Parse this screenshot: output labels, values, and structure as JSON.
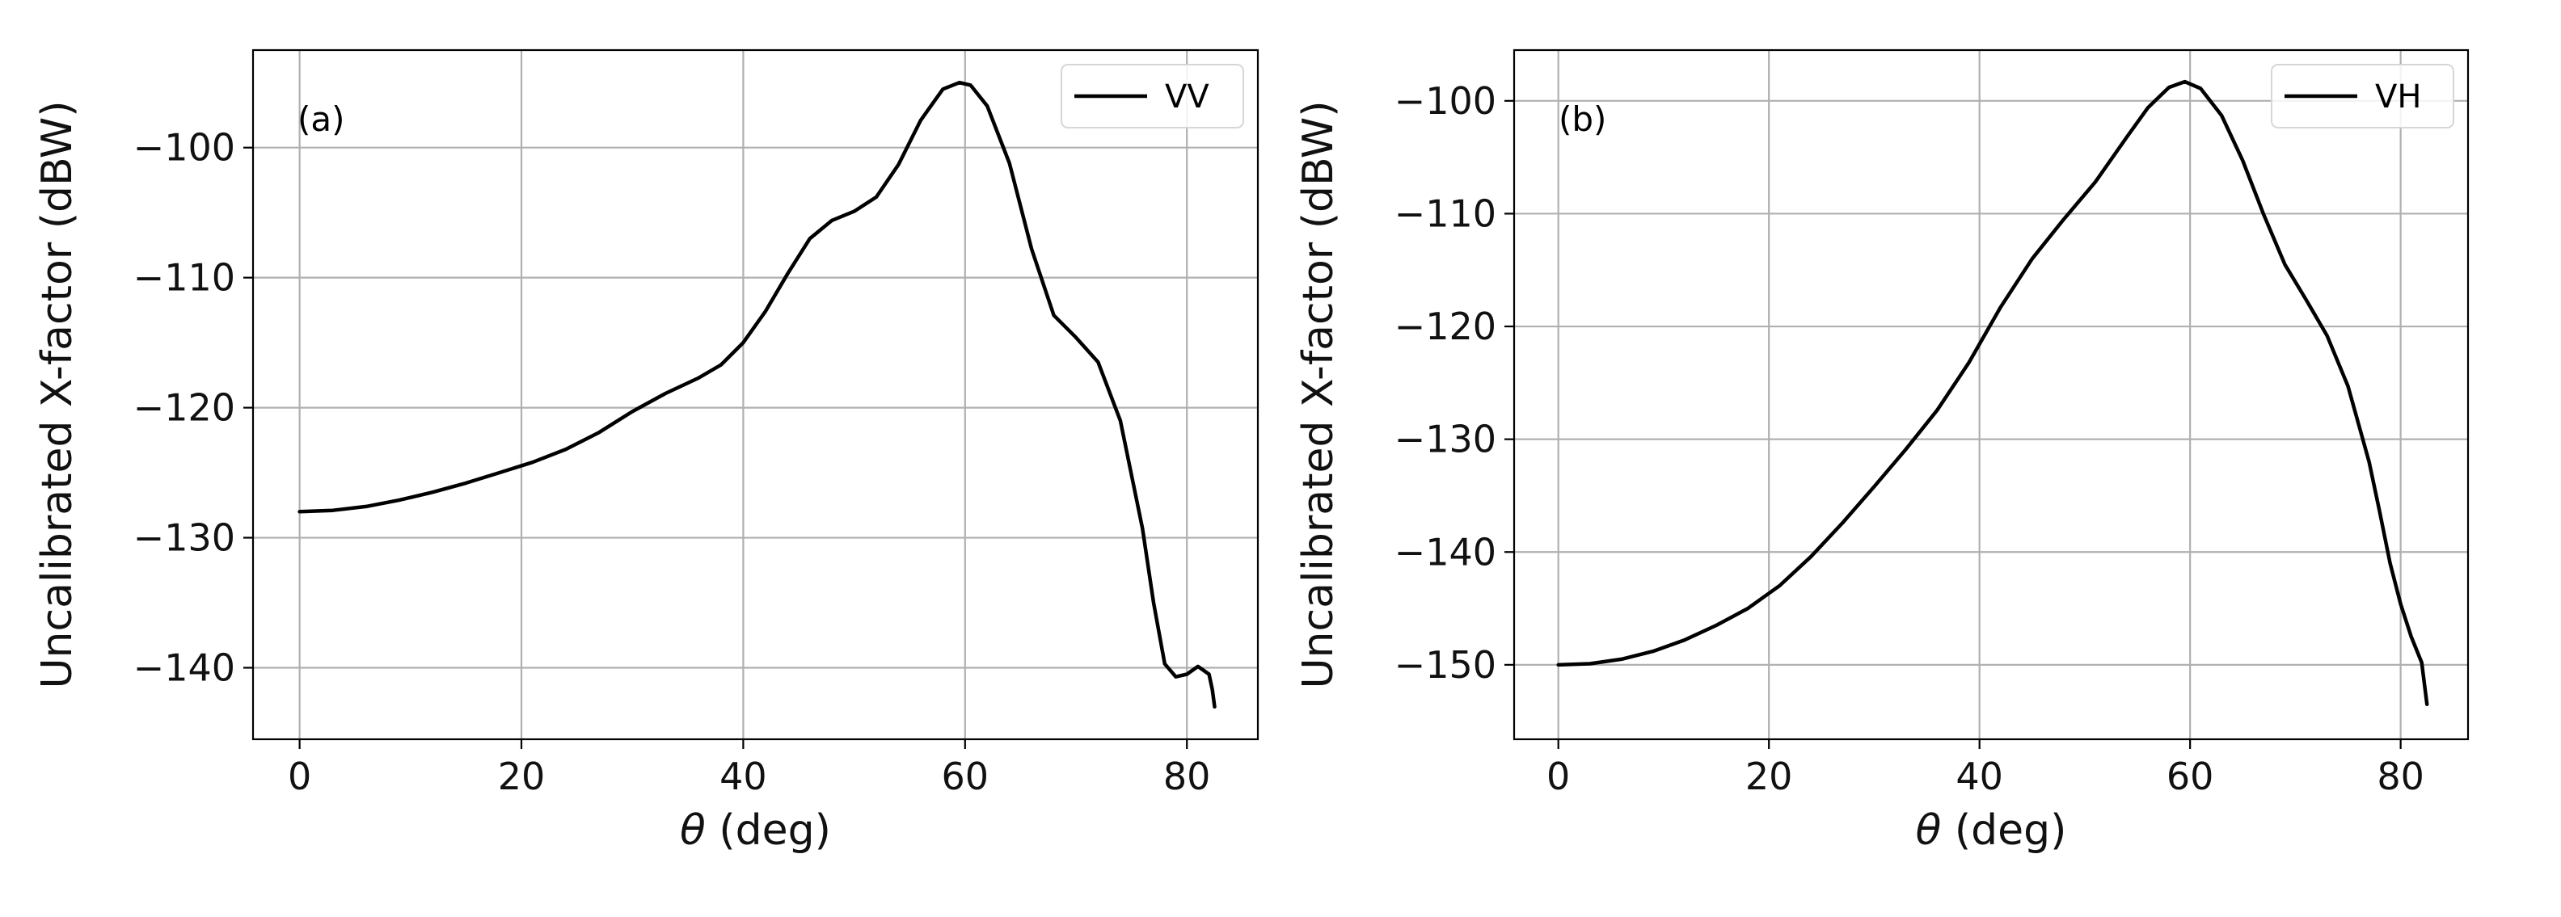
{
  "chart_data": [
    {
      "type": "line",
      "panel_label": "(a)",
      "xlabel_symbol": "θ",
      "xlabel_rest": " (deg)",
      "ylabel": "Uncalibrated X-factor (dBW)",
      "xlim": [
        -4.2,
        86.4
      ],
      "ylim": [
        -145.5,
        -92.5
      ],
      "xticks": [
        0,
        20,
        40,
        60,
        80
      ],
      "yticks": [
        -140,
        -130,
        -120,
        -110,
        -100
      ],
      "xtick_labels": [
        "0",
        "20",
        "40",
        "60",
        "80"
      ],
      "ytick_labels": [
        "−140",
        "−130",
        "−120",
        "−110",
        "−100"
      ],
      "grid": true,
      "legend_position": "top-right",
      "series": [
        {
          "name": "VV",
          "color": "#000000",
          "x": [
            0,
            3,
            6,
            9,
            12,
            15,
            18,
            21,
            24,
            27,
            30,
            33,
            36,
            38,
            40,
            42,
            44,
            46,
            48,
            50,
            52,
            54,
            56,
            58,
            59.5,
            60.5,
            62,
            64,
            66,
            68,
            70,
            72,
            74,
            76,
            77,
            78,
            79,
            80,
            81,
            82,
            82.3,
            82.5
          ],
          "y": [
            -128,
            -127.9,
            -127.6,
            -127.1,
            -126.5,
            -125.8,
            -125,
            -124.2,
            -123.2,
            -121.9,
            -120.3,
            -118.9,
            -117.7,
            -116.7,
            -115,
            -112.6,
            -109.7,
            -107,
            -105.6,
            -104.9,
            -103.8,
            -101.3,
            -97.9,
            -95.5,
            -95,
            -95.2,
            -96.8,
            -101.2,
            -107.8,
            -112.9,
            -114.6,
            -116.5,
            -121,
            -129.3,
            -135,
            -139.7,
            -140.7,
            -140.5,
            -139.9,
            -140.5,
            -141.7,
            -143
          ]
        }
      ]
    },
    {
      "type": "line",
      "panel_label": "(b)",
      "xlabel_symbol": "θ",
      "xlabel_rest": " (deg)",
      "ylabel": "Uncalibrated X-factor (dBW)",
      "xlim": [
        -4.2,
        86.4
      ],
      "ylim": [
        -156.6,
        -95.5
      ],
      "xticks": [
        0,
        20,
        40,
        60,
        80
      ],
      "yticks": [
        -150,
        -140,
        -130,
        -120,
        -110,
        -100
      ],
      "xtick_labels": [
        "0",
        "20",
        "40",
        "60",
        "80"
      ],
      "ytick_labels": [
        "−150",
        "−140",
        "−130",
        "−120",
        "−110",
        "−100"
      ],
      "grid": true,
      "legend_position": "top-right",
      "series": [
        {
          "name": "VH",
          "color": "#000000",
          "x": [
            0,
            3,
            6,
            9,
            12,
            15,
            18,
            21,
            24,
            27,
            30,
            33,
            36,
            39,
            42,
            45,
            48,
            51,
            54,
            56,
            58,
            59.5,
            61,
            63,
            65,
            67,
            69,
            71,
            73,
            75,
            77,
            78,
            79,
            80,
            81,
            82,
            82.5
          ],
          "y": [
            -150,
            -149.9,
            -149.5,
            -148.8,
            -147.8,
            -146.5,
            -145,
            -143,
            -140.4,
            -137.4,
            -134.2,
            -130.9,
            -127.4,
            -123.2,
            -118.3,
            -114,
            -110.5,
            -107.2,
            -103.2,
            -100.6,
            -98.8,
            -98.3,
            -98.9,
            -101.3,
            -105.3,
            -110.1,
            -114.5,
            -117.6,
            -120.8,
            -125.3,
            -132,
            -136.4,
            -141,
            -144.6,
            -147.5,
            -149.8,
            -153.5
          ]
        }
      ]
    }
  ]
}
